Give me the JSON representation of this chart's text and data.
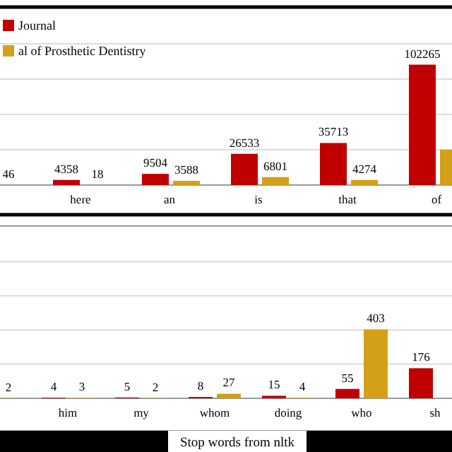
{
  "chart_data": [
    {
      "type": "bar",
      "categories": [
        null,
        "here",
        "an",
        "is",
        "that",
        "of"
      ],
      "series": [
        {
          "name": "Journal",
          "color": "#c00000",
          "values": [
            null,
            4358,
            9504,
            26533,
            35713,
            102265
          ],
          "value_labels": [
            null,
            "4358",
            "9504",
            "26533",
            "35713",
            "102265"
          ]
        },
        {
          "name": "al of Prosthetic Dentistry",
          "color": "#d4a017",
          "values": [
            46,
            18,
            3588,
            6801,
            4274,
            30000
          ],
          "value_labels": [
            "46",
            "18",
            "3588",
            "6801",
            "4274",
            null
          ]
        }
      ],
      "ylim": [
        0,
        150000
      ],
      "yticks": [
        {
          "value": 0,
          "label": null
        },
        {
          "value": 30000,
          "label": null
        },
        {
          "value": 60000,
          "label": null
        },
        {
          "value": 90000,
          "label": null
        },
        {
          "value": 120000,
          "label": null
        }
      ],
      "grid": "y",
      "tick_labels": "x",
      "legend": "top left"
    },
    {
      "type": "bar",
      "xlabel": "Stop words from nltk",
      "categories": [
        null,
        "him",
        "my",
        "whom",
        "doing",
        "who",
        "sh"
      ],
      "series": [
        {
          "color": "#c00000",
          "values": [
            null,
            4,
            5,
            8,
            15,
            55,
            176
          ],
          "value_labels": [
            null,
            "4",
            "5",
            "8",
            "15",
            "55",
            "176"
          ]
        },
        {
          "color": "#d4a017",
          "values": [
            2,
            3,
            2,
            27,
            4,
            403,
            null
          ],
          "value_labels": [
            "2",
            "3",
            "2",
            "27",
            "4",
            "403",
            null
          ]
        }
      ],
      "ylim": [
        0,
        1000
      ],
      "yticks": [
        {
          "value": 0,
          "label": null
        },
        {
          "value": 200,
          "label": null
        },
        {
          "value": 400,
          "label": null
        },
        {
          "value": 600,
          "label": null
        },
        {
          "value": 800,
          "label": null
        }
      ],
      "grid": "y",
      "tick_labels": "x",
      "legend": false
    }
  ]
}
